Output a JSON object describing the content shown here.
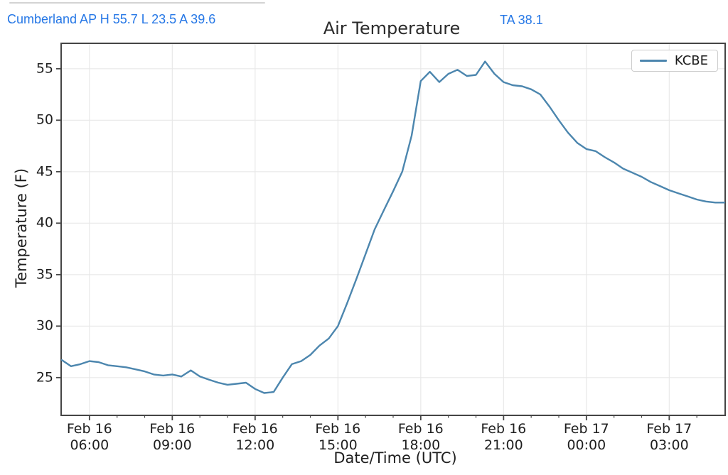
{
  "header": {
    "station_summary": "Cumberland AP H 55.7 L 23.5 A 39.6",
    "title": "Air Temperature",
    "current_reading": "TA 38.1"
  },
  "colors": {
    "header_blue": "#2577e6",
    "title_text": "#2b2b2b",
    "axis_text": "#1f1f1f",
    "line": "#4c86ae",
    "grid": "#e8e8e8",
    "spine": "#454545",
    "legend_border": "#cccccc",
    "top_divider": "#c4c4c4"
  },
  "chart_data": {
    "type": "line",
    "title": "Air Temperature",
    "xlabel": "Date/Time (UTC)",
    "ylabel": "Temperature (F)",
    "legend": {
      "entries": [
        "KCBE"
      ],
      "position": "upper right"
    },
    "grid": true,
    "ylim": [
      21.4,
      57.4
    ],
    "yticks": [
      25,
      30,
      35,
      40,
      45,
      50,
      55
    ],
    "x_unit": "hours since Feb 16 00:00 UTC",
    "xlim": [
      5.0,
      29.0
    ],
    "xticks": [
      {
        "t": 6,
        "label": "Feb 16\n06:00"
      },
      {
        "t": 9,
        "label": "Feb 16\n09:00"
      },
      {
        "t": 12,
        "label": "Feb 16\n12:00"
      },
      {
        "t": 15,
        "label": "Feb 16\n15:00"
      },
      {
        "t": 18,
        "label": "Feb 16\n18:00"
      },
      {
        "t": 21,
        "label": "Feb 16\n21:00"
      },
      {
        "t": 24,
        "label": "Feb 17\n00:00"
      },
      {
        "t": 27,
        "label": "Feb 17\n03:00"
      }
    ],
    "minor_xtick_interval_hours": 1,
    "stats": {
      "high": 55.7,
      "low": 23.5,
      "average": 39.6,
      "ta": 38.1
    },
    "series": [
      {
        "name": "KCBE",
        "color": "#4c86ae",
        "points": [
          [
            5.0,
            26.7
          ],
          [
            5.33,
            26.1
          ],
          [
            5.67,
            26.3
          ],
          [
            6.0,
            26.6
          ],
          [
            6.33,
            26.5
          ],
          [
            6.67,
            26.2
          ],
          [
            7.0,
            26.1
          ],
          [
            7.33,
            26.0
          ],
          [
            7.67,
            25.8
          ],
          [
            8.0,
            25.6
          ],
          [
            8.33,
            25.3
          ],
          [
            8.67,
            25.2
          ],
          [
            9.0,
            25.3
          ],
          [
            9.33,
            25.1
          ],
          [
            9.67,
            25.7
          ],
          [
            10.0,
            25.1
          ],
          [
            10.33,
            24.8
          ],
          [
            10.67,
            24.5
          ],
          [
            11.0,
            24.3
          ],
          [
            11.33,
            24.4
          ],
          [
            11.67,
            24.5
          ],
          [
            12.0,
            23.9
          ],
          [
            12.33,
            23.5
          ],
          [
            12.67,
            23.6
          ],
          [
            13.0,
            25.0
          ],
          [
            13.33,
            26.3
          ],
          [
            13.67,
            26.6
          ],
          [
            14.0,
            27.2
          ],
          [
            14.33,
            28.1
          ],
          [
            14.67,
            28.8
          ],
          [
            15.0,
            30.0
          ],
          [
            15.33,
            32.2
          ],
          [
            15.67,
            34.6
          ],
          [
            16.0,
            37.0
          ],
          [
            16.33,
            39.4
          ],
          [
            16.67,
            41.3
          ],
          [
            17.0,
            43.1
          ],
          [
            17.33,
            45.0
          ],
          [
            17.67,
            48.5
          ],
          [
            18.0,
            53.8
          ],
          [
            18.33,
            54.7
          ],
          [
            18.67,
            53.7
          ],
          [
            19.0,
            54.5
          ],
          [
            19.33,
            54.9
          ],
          [
            19.67,
            54.3
          ],
          [
            20.0,
            54.4
          ],
          [
            20.33,
            55.7
          ],
          [
            20.67,
            54.5
          ],
          [
            21.0,
            53.7
          ],
          [
            21.33,
            53.4
          ],
          [
            21.67,
            53.3
          ],
          [
            22.0,
            53.0
          ],
          [
            22.33,
            52.5
          ],
          [
            22.67,
            51.3
          ],
          [
            23.0,
            50.0
          ],
          [
            23.33,
            48.8
          ],
          [
            23.67,
            47.8
          ],
          [
            24.0,
            47.2
          ],
          [
            24.33,
            47.0
          ],
          [
            24.67,
            46.4
          ],
          [
            25.0,
            45.9
          ],
          [
            25.33,
            45.3
          ],
          [
            25.67,
            44.9
          ],
          [
            26.0,
            44.5
          ],
          [
            26.33,
            44.0
          ],
          [
            26.67,
            43.6
          ],
          [
            27.0,
            43.2
          ],
          [
            27.33,
            42.9
          ],
          [
            27.67,
            42.6
          ],
          [
            28.0,
            42.3
          ],
          [
            28.33,
            42.1
          ],
          [
            28.67,
            42.0
          ],
          [
            29.0,
            42.0
          ]
        ]
      }
    ]
  }
}
